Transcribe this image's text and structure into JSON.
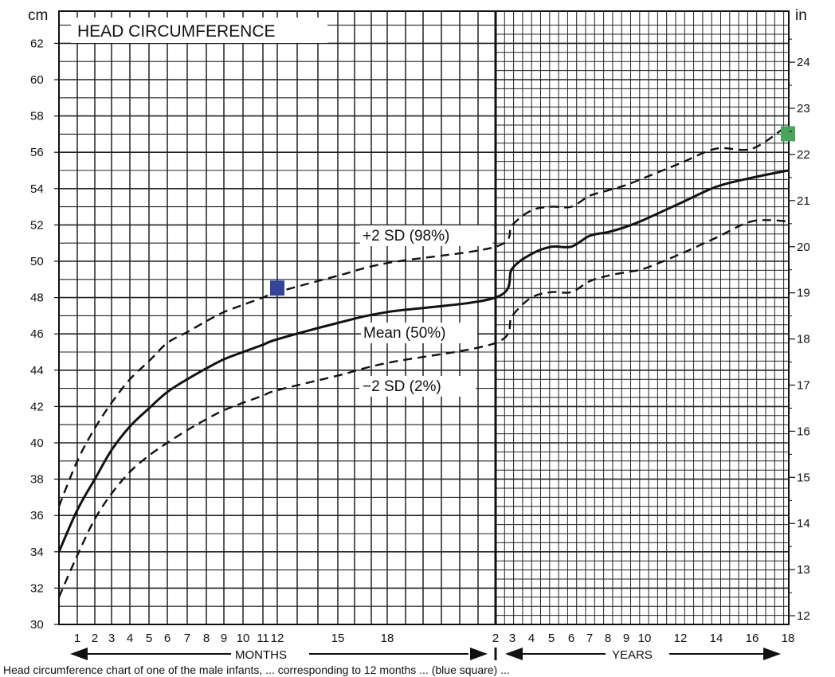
{
  "chart_data": {
    "type": "line",
    "title": "HEAD CIRCUMFERENCE",
    "ylabel_left": "cm",
    "ylabel_right": "in",
    "ylim_cm": [
      30,
      63
    ],
    "y_ticks_cm": [
      30,
      32,
      34,
      36,
      38,
      40,
      42,
      44,
      46,
      48,
      50,
      52,
      54,
      56,
      58,
      60,
      62
    ],
    "y_ticks_in": [
      12,
      13,
      14,
      15,
      16,
      17,
      18,
      19,
      20,
      21,
      22,
      23,
      24
    ],
    "x_months_label": "MONTHS",
    "x_years_label": "YEARS",
    "x_ticks_months": [
      "1",
      "2",
      "3",
      "4",
      "5",
      "6",
      "7",
      "8",
      "9",
      "10",
      "11",
      "12",
      "15",
      "18"
    ],
    "x_ticks_years": [
      "2",
      "3",
      "4",
      "5",
      "6",
      "7",
      "8",
      "9",
      "10",
      "12",
      "14",
      "16",
      "18"
    ],
    "grid": true,
    "series": [
      {
        "name": "+2 SD (98%)",
        "style": "dashed",
        "months": [
          [
            0,
            36.5
          ],
          [
            1,
            39
          ],
          [
            2,
            40.8
          ],
          [
            3,
            42.2
          ],
          [
            4,
            43.5
          ],
          [
            5,
            44.5
          ],
          [
            6,
            45.5
          ],
          [
            7,
            46.1
          ],
          [
            8,
            46.7
          ],
          [
            9,
            47.2
          ],
          [
            10,
            47.6
          ],
          [
            11,
            48
          ],
          [
            12,
            48.3
          ],
          [
            15,
            49.2
          ],
          [
            18,
            49.9
          ],
          [
            24,
            50.8
          ]
        ],
        "years": [
          [
            2,
            50.8
          ],
          [
            3,
            52
          ],
          [
            4,
            52.8
          ],
          [
            5,
            53
          ],
          [
            6,
            53
          ],
          [
            7,
            53.6
          ],
          [
            8,
            53.9
          ],
          [
            9,
            54.2
          ],
          [
            10,
            54.6
          ],
          [
            12,
            55.4
          ],
          [
            14,
            56.2
          ],
          [
            16,
            56.2
          ],
          [
            18,
            57.5
          ]
        ]
      },
      {
        "name": "Mean (50%)",
        "style": "solid",
        "months": [
          [
            0,
            34
          ],
          [
            1,
            36.3
          ],
          [
            2,
            38
          ],
          [
            3,
            39.6
          ],
          [
            4,
            40.9
          ],
          [
            5,
            41.9
          ],
          [
            6,
            42.8
          ],
          [
            7,
            43.5
          ],
          [
            8,
            44.1
          ],
          [
            9,
            44.6
          ],
          [
            10,
            45
          ],
          [
            11,
            45.4
          ],
          [
            12,
            45.7
          ],
          [
            15,
            46.6
          ],
          [
            18,
            47.2
          ],
          [
            24,
            48
          ]
        ],
        "years": [
          [
            2,
            48
          ],
          [
            3,
            49.6
          ],
          [
            4,
            50.4
          ],
          [
            5,
            50.8
          ],
          [
            6,
            50.8
          ],
          [
            7,
            51.4
          ],
          [
            8,
            51.6
          ],
          [
            9,
            51.9
          ],
          [
            10,
            52.3
          ],
          [
            12,
            53.2
          ],
          [
            14,
            54.1
          ],
          [
            16,
            54.6
          ],
          [
            18,
            55
          ]
        ]
      },
      {
        "name": "−2 SD (2%)",
        "style": "dashed",
        "months": [
          [
            0,
            31.5
          ],
          [
            1,
            33.8
          ],
          [
            2,
            35.8
          ],
          [
            3,
            37.2
          ],
          [
            4,
            38.4
          ],
          [
            5,
            39.3
          ],
          [
            6,
            40
          ],
          [
            7,
            40.7
          ],
          [
            8,
            41.3
          ],
          [
            9,
            41.8
          ],
          [
            10,
            42.2
          ],
          [
            11,
            42.6
          ],
          [
            12,
            42.9
          ],
          [
            15,
            43.7
          ],
          [
            18,
            44.4
          ],
          [
            24,
            45.5
          ]
        ],
        "years": [
          [
            2,
            45.5
          ],
          [
            3,
            47
          ],
          [
            4,
            48
          ],
          [
            5,
            48.3
          ],
          [
            6,
            48.3
          ],
          [
            7,
            48.9
          ],
          [
            8,
            49.2
          ],
          [
            9,
            49.4
          ],
          [
            10,
            49.6
          ],
          [
            12,
            50.4
          ],
          [
            14,
            51.3
          ],
          [
            16,
            52.2
          ],
          [
            18,
            52.2
          ]
        ]
      }
    ],
    "markers": [
      {
        "color": "#33449a",
        "segment": "months",
        "x": 12,
        "y": 48.5
      },
      {
        "color": "#4aa45a",
        "segment": "years",
        "x": 18,
        "y": 57
      }
    ],
    "caption_fragment": "Head circumference chart of one of the male infants, ... corresponding to 12 months ... (blue square) ..."
  }
}
